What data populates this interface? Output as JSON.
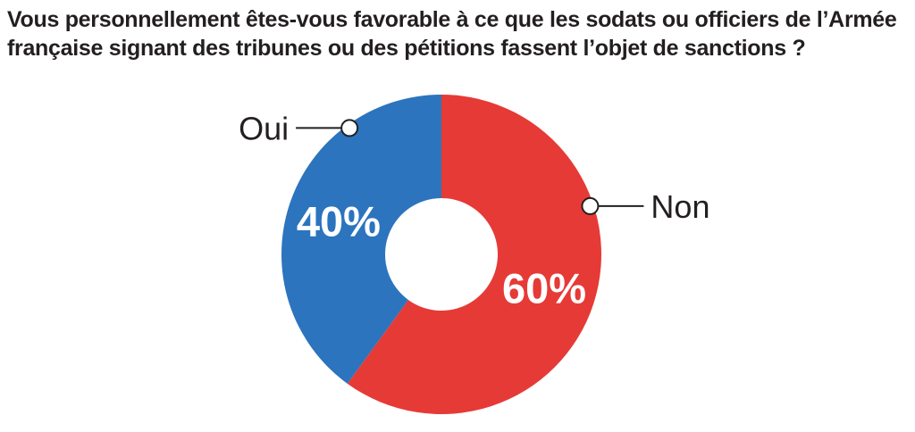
{
  "title": {
    "line1": "Vous personnellement êtes-vous favorable à ce que les sodats ou officiers de l’Armée",
    "line2": "française signant des tribunes ou des pétitions fassent l’objet de sanctions ?"
  },
  "chart_data": {
    "type": "pie",
    "donut": true,
    "title": "Vous personnellement êtes-vous favorable à ce que les sodats ou officiers de l’Armée française signant des tribunes ou des pétitions fassent l’objet de sanctions ?",
    "categories": [
      "Non",
      "Oui"
    ],
    "values": [
      60,
      40
    ],
    "value_labels": [
      "60%",
      "40%"
    ],
    "colors": [
      "#e63a36",
      "#2c74bd"
    ]
  }
}
